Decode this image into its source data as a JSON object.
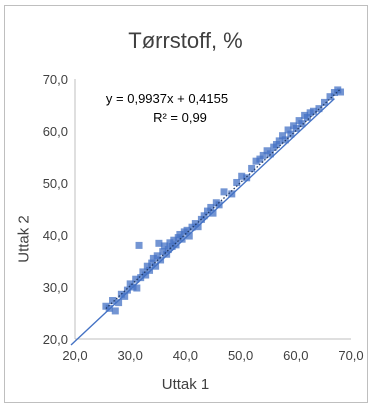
{
  "chart_data": {
    "type": "scatter",
    "title": "Tørrstoff, %",
    "xlabel": "Uttak 1",
    "ylabel": "Uttak 2",
    "xlim": [
      20,
      70
    ],
    "ylim": [
      20,
      70
    ],
    "x_ticks": [
      "20,0",
      "30,0",
      "40,0",
      "50,0",
      "60,0",
      "70,0"
    ],
    "y_ticks": [
      "20,0",
      "30,0",
      "40,0",
      "50,0",
      "60,0",
      "70,0"
    ],
    "grid": false,
    "trendline": {
      "equation": "y = 0,9937x + 0,4155",
      "r2": "R² = 0,99",
      "slope": 0.9937,
      "intercept": 0.4155
    },
    "reference_line": {
      "slope": 1.0,
      "intercept": 0.0
    },
    "points": [
      [
        25.6,
        26.3
      ],
      [
        26.2,
        25.9
      ],
      [
        26.8,
        27.4
      ],
      [
        27.3,
        25.4
      ],
      [
        27.9,
        27.0
      ],
      [
        28.4,
        28.6
      ],
      [
        29.0,
        28.2
      ],
      [
        29.5,
        29.4
      ],
      [
        30.0,
        30.6
      ],
      [
        30.5,
        30.0
      ],
      [
        31.0,
        31.5
      ],
      [
        31.2,
        29.8
      ],
      [
        31.6,
        38.0
      ],
      [
        31.9,
        31.8
      ],
      [
        32.3,
        32.9
      ],
      [
        32.8,
        32.3
      ],
      [
        33.1,
        34.0
      ],
      [
        33.5,
        33.2
      ],
      [
        33.9,
        34.6
      ],
      [
        34.2,
        35.5
      ],
      [
        34.6,
        34.0
      ],
      [
        34.9,
        36.0
      ],
      [
        35.2,
        38.4
      ],
      [
        35.5,
        35.2
      ],
      [
        35.9,
        36.8
      ],
      [
        36.2,
        37.9
      ],
      [
        36.6,
        36.3
      ],
      [
        36.9,
        37.2
      ],
      [
        37.2,
        38.5
      ],
      [
        37.6,
        37.8
      ],
      [
        37.9,
        39.0
      ],
      [
        38.3,
        38.1
      ],
      [
        38.7,
        39.5
      ],
      [
        39.0,
        40.1
      ],
      [
        39.4,
        39.2
      ],
      [
        39.8,
        40.6
      ],
      [
        40.3,
        40.9
      ],
      [
        40.7,
        39.8
      ],
      [
        41.2,
        41.5
      ],
      [
        41.8,
        42.2
      ],
      [
        42.3,
        41.6
      ],
      [
        42.9,
        43.0
      ],
      [
        43.4,
        43.7
      ],
      [
        44.0,
        44.6
      ],
      [
        44.6,
        45.3
      ],
      [
        45.0,
        44.2
      ],
      [
        45.6,
        46.2
      ],
      [
        46.1,
        45.8
      ],
      [
        47.0,
        48.3
      ],
      [
        48.4,
        47.9
      ],
      [
        49.3,
        50.1
      ],
      [
        50.2,
        51.3
      ],
      [
        51.1,
        51.0
      ],
      [
        52.0,
        52.8
      ],
      [
        52.8,
        54.2
      ],
      [
        53.5,
        54.6
      ],
      [
        54.1,
        55.3
      ],
      [
        54.8,
        56.2
      ],
      [
        55.4,
        55.6
      ],
      [
        56.0,
        56.9
      ],
      [
        56.5,
        57.4
      ],
      [
        57.0,
        58.1
      ],
      [
        57.6,
        59.1
      ],
      [
        58.1,
        58.3
      ],
      [
        58.6,
        60.2
      ],
      [
        59.1,
        59.4
      ],
      [
        59.6,
        61.0
      ],
      [
        60.1,
        60.5
      ],
      [
        60.6,
        62.0
      ],
      [
        61.1,
        61.4
      ],
      [
        61.6,
        63.0
      ],
      [
        62.1,
        62.6
      ],
      [
        62.6,
        63.5
      ],
      [
        63.2,
        63.8
      ],
      [
        64.2,
        64.3
      ],
      [
        65.2,
        65.5
      ],
      [
        66.2,
        66.6
      ],
      [
        67.0,
        67.4
      ],
      [
        67.6,
        67.9
      ],
      [
        68.1,
        67.5
      ]
    ]
  }
}
